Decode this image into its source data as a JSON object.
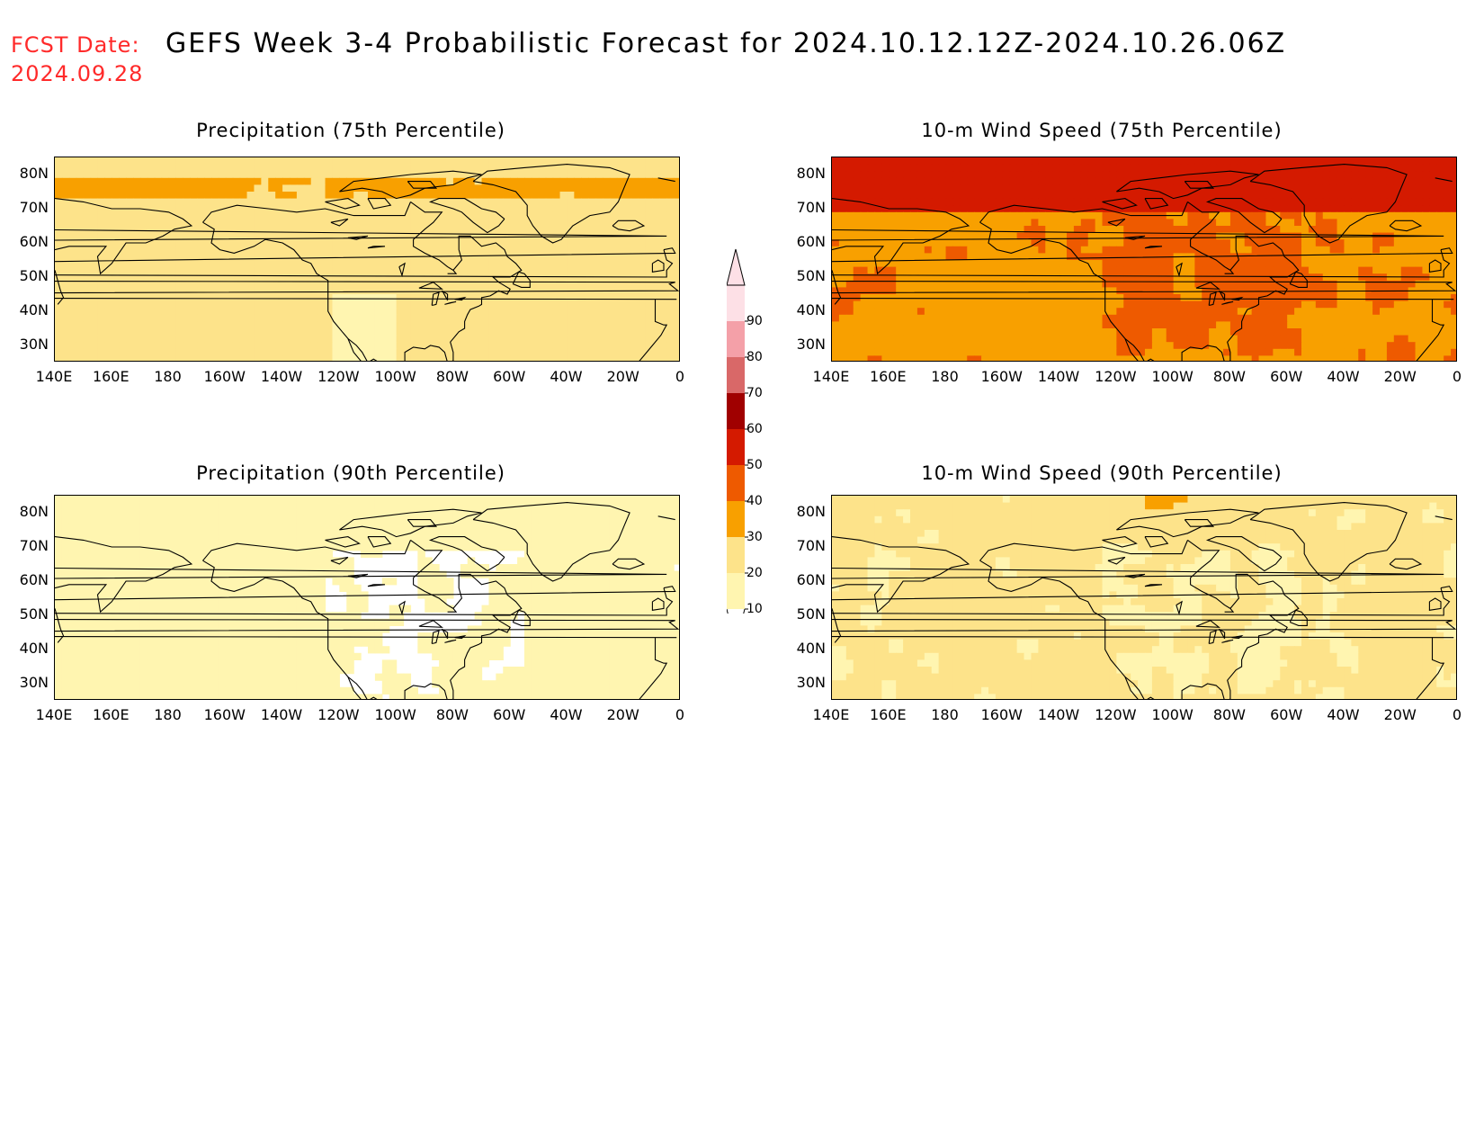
{
  "header": {
    "fcst_label": "FCST Date:",
    "fcst_date": "2024.09.28",
    "title": "GEFS Week 3-4 Probabilistic Forecast for 2024.10.12.12Z-2024.10.26.06Z"
  },
  "axes": {
    "lat_ticks": [
      "80N",
      "70N",
      "60N",
      "50N",
      "40N",
      "30N"
    ],
    "lon_ticks": [
      "140E",
      "160E",
      "180",
      "160W",
      "140W",
      "120W",
      "100W",
      "80W",
      "60W",
      "40W",
      "20W",
      "0"
    ],
    "lat_range": [
      25,
      85
    ],
    "lon_range": [
      "140E",
      "0"
    ]
  },
  "panels": [
    {
      "title": "Precipitation (75th Percentile)",
      "field": "precip75"
    },
    {
      "title": "10-m Wind Speed (75th Percentile)",
      "field": "wind75"
    },
    {
      "title": "Precipitation (90th Percentile)",
      "field": "precip90"
    },
    {
      "title": "10-m Wind Speed (90th Percentile)",
      "field": "wind90"
    }
  ],
  "colorbar": {
    "levels": [
      "10",
      "20",
      "30",
      "40",
      "50",
      "60",
      "70",
      "80",
      "90"
    ],
    "colors": [
      "#ffffff",
      "#fff5b0",
      "#fde38a",
      "#f8a000",
      "#ee5a00",
      "#d41a00",
      "#a00000",
      "#d96868",
      "#f4a0a8",
      "#fde0e6"
    ]
  }
}
